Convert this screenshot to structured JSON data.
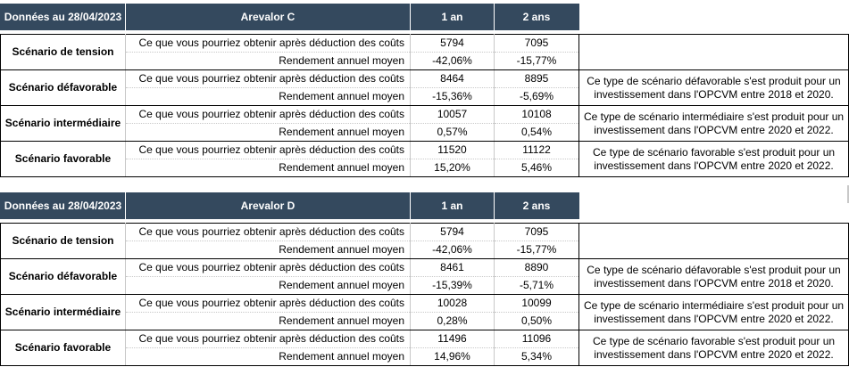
{
  "tables": [
    {
      "header": {
        "date_label": "Données au 28/04/2023",
        "fund": "Arevalor C",
        "col_1an": "1 an",
        "col_2ans": "2 ans"
      },
      "rows": [
        {
          "scenario": "Scénario de tension",
          "l1": "Ce que vous pourriez obtenir après déduction des coûts",
          "v1a": "5794",
          "v1b": "7095",
          "l2": "Rendement annuel moyen",
          "v2a": "-42,06%",
          "v2b": "-15,77%",
          "note": ""
        },
        {
          "scenario": "Scénario défavorable",
          "l1": "Ce que vous pourriez obtenir après déduction des coûts",
          "v1a": "8464",
          "v1b": "8895",
          "l2": "Rendement annuel moyen",
          "v2a": "-15,36%",
          "v2b": "-5,69%",
          "note": "Ce type de scénario défavorable s'est produit pour un investissement dans l'OPCVM entre 2018 et 2020."
        },
        {
          "scenario": "Scénario intermédiaire",
          "l1": "Ce que vous pourriez obtenir après déduction des coûts",
          "v1a": "10057",
          "v1b": "10108",
          "l2": "Rendement annuel moyen",
          "v2a": "0,57%",
          "v2b": "0,54%",
          "note": "Ce type de scénario intermédiaire s'est produit pour un investissement dans l'OPCVM entre 2020 et 2022."
        },
        {
          "scenario": "Scénario favorable",
          "l1": "Ce que vous pourriez obtenir après déduction des coûts",
          "v1a": "11520",
          "v1b": "11122",
          "l2": "Rendement annuel moyen",
          "v2a": "15,20%",
          "v2b": "5,46%",
          "note": "Ce type de scénario favorable s'est produit pour un investissement dans l'OPCVM entre 2020 et 2022."
        }
      ]
    },
    {
      "header": {
        "date_label": "Données au 28/04/2023",
        "fund": "Arevalor D",
        "col_1an": "1 an",
        "col_2ans": "2 ans"
      },
      "rows": [
        {
          "scenario": "Scénario de tension",
          "l1": "Ce que vous pourriez obtenir après déduction des coûts",
          "v1a": "5794",
          "v1b": "7095",
          "l2": "Rendement annuel moyen",
          "v2a": "-42,06%",
          "v2b": "-15,77%",
          "note": ""
        },
        {
          "scenario": "Scénario défavorable",
          "l1": "Ce que vous pourriez obtenir après déduction des coûts",
          "v1a": "8461",
          "v1b": "8890",
          "l2": "Rendement annuel moyen",
          "v2a": "-15,39%",
          "v2b": "-5,71%",
          "note": "Ce type de scénario défavorable s'est produit pour un investissement dans l'OPCVM entre 2018 et 2020."
        },
        {
          "scenario": "Scénario intermédiaire",
          "l1": "Ce que vous pourriez obtenir après déduction des coûts",
          "v1a": "10028",
          "v1b": "10099",
          "l2": "Rendement annuel moyen",
          "v2a": "0,28%",
          "v2b": "0,50%",
          "note": "Ce type de scénario intermédiaire s'est produit pour un investissement dans l'OPCVM entre 2020 et 2022."
        },
        {
          "scenario": "Scénario favorable",
          "l1": "Ce que vous pourriez obtenir après déduction des coûts",
          "v1a": "11496",
          "v1b": "11096",
          "l2": "Rendement annuel moyen",
          "v2a": "14,96%",
          "v2b": "5,34%",
          "note": "Ce type de scénario favorable s'est produit pour un investissement dans l'OPCVM entre 2020 et 2022."
        }
      ]
    }
  ]
}
